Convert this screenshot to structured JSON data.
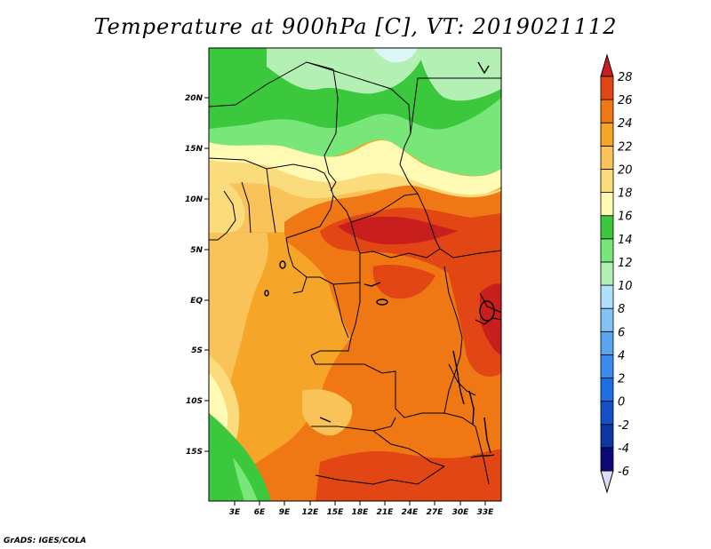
{
  "title": "Temperature at 900hPa [C], VT: 2019021112",
  "credit": "GrADS: IGES/COLA",
  "map": {
    "lat_labels": [
      "20N",
      "15N",
      "10N",
      "5N",
      "EQ",
      "5S",
      "10S",
      "15S"
    ],
    "lon_labels": [
      "3E",
      "6E",
      "9E",
      "12E",
      "15E",
      "18E",
      "21E",
      "24E",
      "27E",
      "30E",
      "33E"
    ]
  },
  "colorbar": {
    "levels": [
      "-6",
      "-4",
      "-2",
      "0",
      "2",
      "4",
      "6",
      "8",
      "10",
      "12",
      "14",
      "16",
      "18",
      "20",
      "22",
      "24",
      "26",
      "28"
    ],
    "colors": [
      "#dcdcf5",
      "#0a0a78",
      "#0a37a0",
      "#1450c8",
      "#1e6ee1",
      "#3c8cf0",
      "#5aa5f0",
      "#82c3f5",
      "#afe1fa",
      "#b4f0b4",
      "#78e678",
      "#3cc83c",
      "#fffab4",
      "#fadc7d",
      "#fac35a",
      "#f5a528",
      "#f07814",
      "#e14614",
      "#c81e1e"
    ]
  }
}
